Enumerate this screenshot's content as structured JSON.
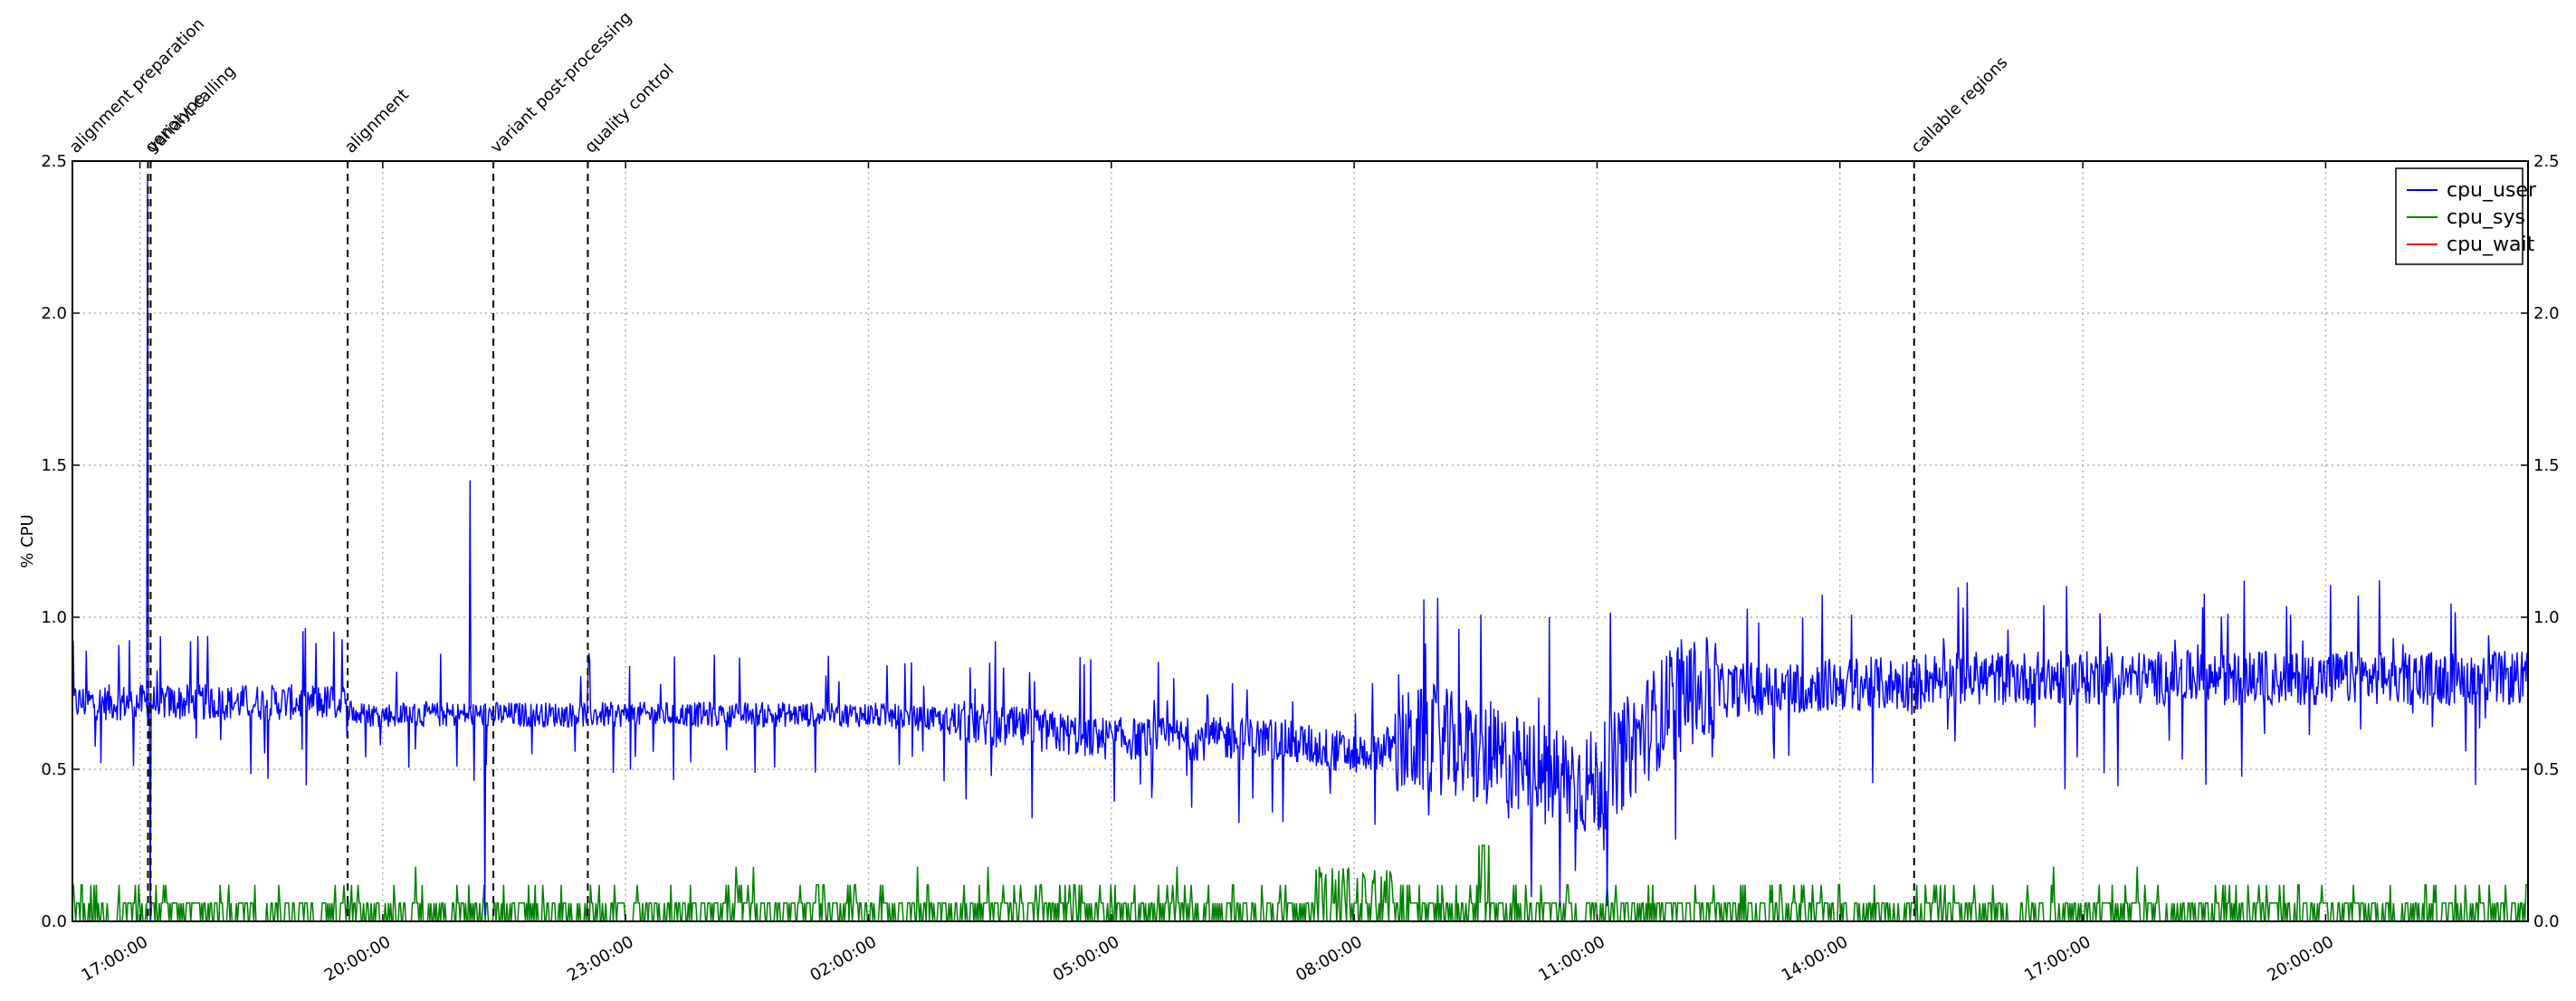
{
  "chart_data": {
    "type": "line",
    "ylabel": "% CPU",
    "ylim": [
      0,
      2.5
    ],
    "yticks": [
      "0.0",
      "0.5",
      "1.0",
      "1.5",
      "2.0",
      "2.5"
    ],
    "xlim": [
      "16:10:00",
      "22:30:00 (+1 day)"
    ],
    "xticks": [
      "17:00:00",
      "20:00:00",
      "23:00:00",
      "02:00:00",
      "05:00:00",
      "08:00:00",
      "11:00:00",
      "14:00:00",
      "17:00:00",
      "20:00:00"
    ],
    "grid": true,
    "legend_position": "top-right",
    "series": [
      {
        "name": "cpu_user",
        "color": "#0000ff",
        "approx_profile": [
          {
            "t": "16:10",
            "value": 0.72
          },
          {
            "t": "17:00",
            "value": 0.72
          },
          {
            "t": "19:30",
            "value": 0.72
          },
          {
            "t": "19:40",
            "value": 0.68
          },
          {
            "t": "23:00",
            "value": 0.68
          },
          {
            "t": "02:00",
            "value": 0.68
          },
          {
            "t": "03:00",
            "value": 0.66
          },
          {
            "t": "05:00",
            "value": 0.6
          },
          {
            "t": "07:00",
            "value": 0.6
          },
          {
            "t": "08:00",
            "value": 0.55
          },
          {
            "t": "09:00",
            "value": 0.6
          },
          {
            "t": "10:00",
            "value": 0.5
          },
          {
            "t": "11:00",
            "value": 0.45
          },
          {
            "t": "12:00",
            "value": 0.75
          },
          {
            "t": "14:00",
            "value": 0.78
          },
          {
            "t": "15:00",
            "value": 0.78
          },
          {
            "t": "17:10",
            "value": 0.8
          },
          {
            "t": "19:30",
            "value": 0.75
          },
          {
            "t": "20:30",
            "value": 0.65
          },
          {
            "t": "21:00",
            "value": 0.85
          },
          {
            "t": "22:30",
            "value": 0.8
          }
        ]
      },
      {
        "name": "cpu_sys",
        "color": "#008000",
        "approx_profile": [
          {
            "t": "16:10",
            "value": 0.04
          },
          {
            "t": "22:30",
            "value": 0.04
          }
        ]
      },
      {
        "name": "cpu_wait",
        "color": "#ff0000",
        "approx_profile": [
          {
            "t": "16:10",
            "value": 0.0
          },
          {
            "t": "22:30",
            "value": 0.0
          }
        ]
      }
    ],
    "annotations": [
      {
        "label": "alignment preparation",
        "t": "16:10"
      },
      {
        "label": "alignment",
        "t": "19:34"
      },
      {
        "label": "callable regions",
        "t": "14:55"
      },
      {
        "label": "genotype",
        "t": "17:06"
      },
      {
        "label": "variant calling",
        "t": "17:08"
      },
      {
        "label": "variant post-processing",
        "t": "21:22"
      },
      {
        "label": "quality control",
        "t": "22:32"
      }
    ]
  }
}
